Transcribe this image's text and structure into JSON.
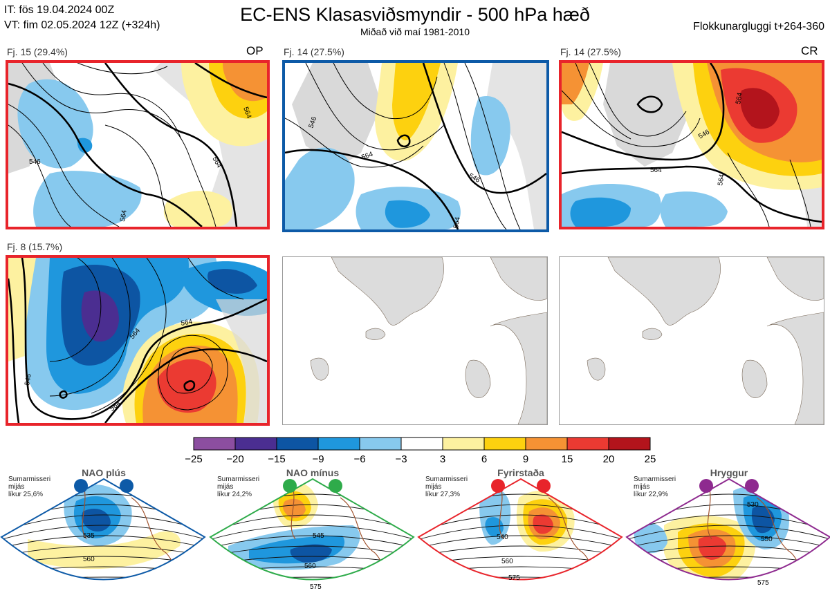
{
  "header": {
    "init_time": "IT: fös 19.04.2024 00Z",
    "valid_time": "VT: fim 02.05.2024 12Z  (+324h)",
    "title": "EC-ENS Klasasviðsmyndir - 500 hPa hæð",
    "subtitle": "Miðað við maí 1981-2010",
    "window": "Flokkunargluggi t+264-360"
  },
  "panels": [
    {
      "count_label": "Fj. 15 (29.4%)",
      "regime_code": "OP",
      "border_color": "#e8242b",
      "contour_labels": [
        "546",
        "564",
        "564",
        "564"
      ]
    },
    {
      "count_label": "Fj. 14 (27.5%)",
      "regime_code": "",
      "border_color": "#0d5aa7",
      "contour_labels": [
        "546",
        "564",
        "546",
        "564"
      ]
    },
    {
      "count_label": "Fj. 14 (27.5%)",
      "regime_code": "CR",
      "border_color": "#e8242b",
      "contour_labels": [
        "546",
        "564",
        "564",
        "564"
      ]
    },
    {
      "count_label": "Fj. 8 (15.7%)",
      "regime_code": "",
      "border_color": "#e8242b",
      "contour_labels": [
        "546",
        "564",
        "564",
        "564"
      ]
    }
  ],
  "colorbar": {
    "ticks": [
      "−25",
      "−20",
      "−15",
      "−9",
      "−6",
      "−3",
      "3",
      "6",
      "9",
      "15",
      "20",
      "25"
    ],
    "colors": [
      "#8c4ea0",
      "#4b2e91",
      "#0d55a3",
      "#1f97dd",
      "#87c9ee",
      "#ffffff",
      "#fdf1a0",
      "#fdd10f",
      "#f59234",
      "#eb3a32",
      "#b3141c"
    ]
  },
  "regimes": [
    {
      "name": "NAO plús",
      "season": "Sumarmisseri",
      "basis": "mijás",
      "probability": "líkur 25,6%",
      "color": "#0d5aa7",
      "contour_labels": [
        "535",
        "560"
      ]
    },
    {
      "name": "NAO mínus",
      "season": "Sumarmisseri",
      "basis": "mijás",
      "probability": "líkur 24,2%",
      "color": "#2eab4a",
      "contour_labels": [
        "545",
        "560",
        "575"
      ]
    },
    {
      "name": "Fyrirstaða",
      "season": "Sumarmisseri",
      "basis": "mijás",
      "probability": "líkur 27,3%",
      "color": "#e8242b",
      "contour_labels": [
        "540",
        "560",
        "575"
      ]
    },
    {
      "name": "Hryggur",
      "season": "Sumarmisseri",
      "basis": "mijás",
      "probability": "líkur 22,9%",
      "color": "#8e2a8f",
      "contour_labels": [
        "530",
        "550",
        "575"
      ]
    }
  ]
}
